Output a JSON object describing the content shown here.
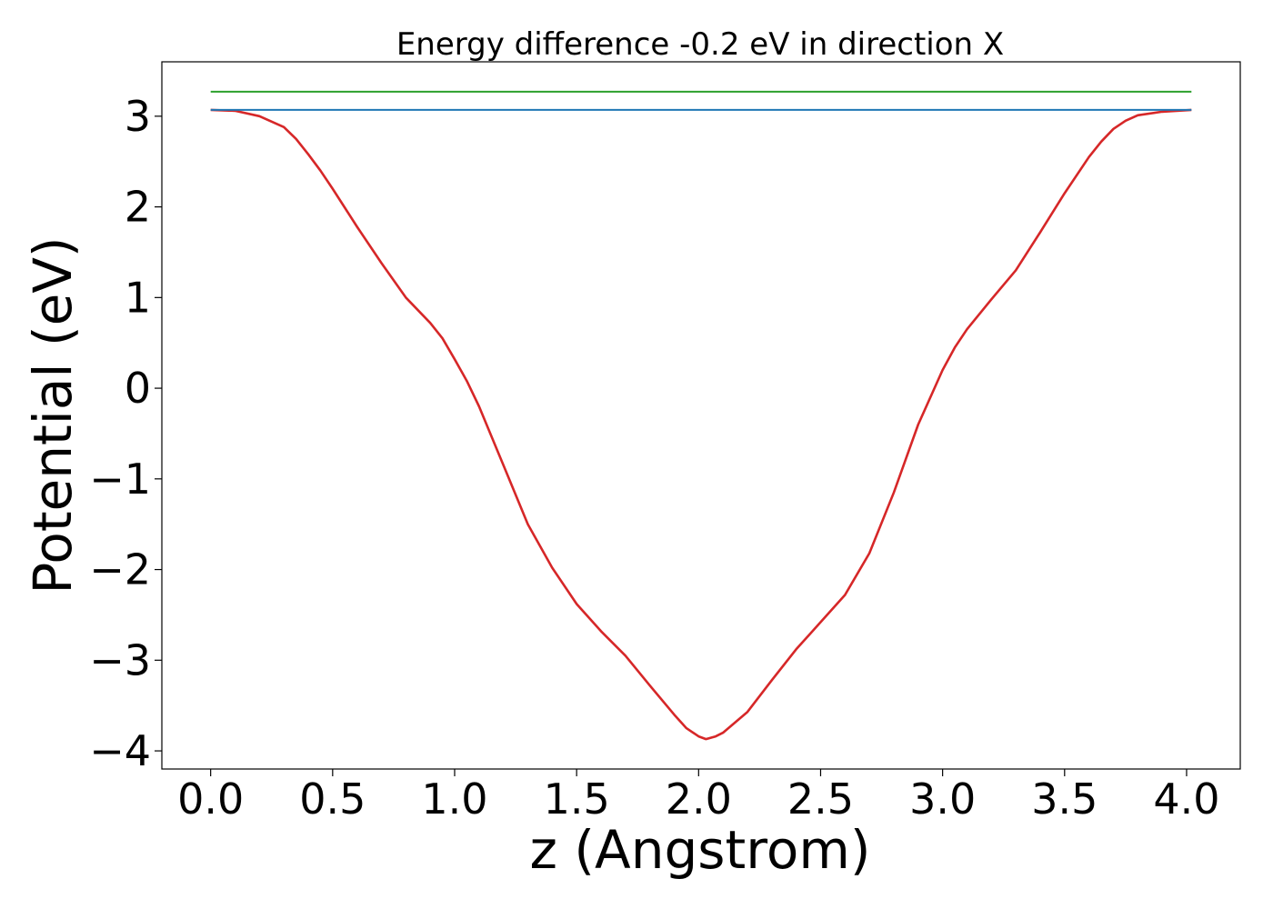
{
  "chart_data": {
    "type": "line",
    "title": "Energy difference -0.2 eV in direction X",
    "xlabel": "z (Angstrom)",
    "ylabel": "Potential (eV)",
    "xlim": [
      -0.2,
      4.22
    ],
    "ylim": [
      -4.2,
      3.6
    ],
    "xticks": [
      0.0,
      0.5,
      1.0,
      1.5,
      2.0,
      2.5,
      3.0,
      3.5,
      4.0
    ],
    "xtick_labels": [
      "0.0",
      "0.5",
      "1.0",
      "1.5",
      "2.0",
      "2.5",
      "3.0",
      "3.5",
      "4.0"
    ],
    "yticks": [
      3,
      2,
      1,
      0,
      -1,
      -2,
      -3,
      -4
    ],
    "ytick_labels": [
      "3",
      "2",
      "1",
      "0",
      "−1",
      "−2",
      "−3",
      "−4"
    ],
    "grid": false,
    "legend": "none",
    "series": [
      {
        "color": "#d62728",
        "x": [
          0.0,
          0.1,
          0.2,
          0.3,
          0.35,
          0.4,
          0.45,
          0.5,
          0.6,
          0.7,
          0.8,
          0.9,
          0.95,
          1.0,
          1.05,
          1.1,
          1.2,
          1.3,
          1.4,
          1.5,
          1.6,
          1.7,
          1.8,
          1.9,
          1.95,
          2.0,
          2.03,
          2.07,
          2.1,
          2.2,
          2.3,
          2.4,
          2.5,
          2.6,
          2.7,
          2.8,
          2.9,
          3.0,
          3.05,
          3.1,
          3.2,
          3.3,
          3.4,
          3.5,
          3.6,
          3.65,
          3.7,
          3.75,
          3.8,
          3.9,
          4.02
        ],
        "y": [
          3.07,
          3.06,
          3.0,
          2.88,
          2.75,
          2.58,
          2.4,
          2.2,
          1.78,
          1.38,
          1.0,
          0.72,
          0.55,
          0.32,
          0.08,
          -0.2,
          -0.85,
          -1.5,
          -1.98,
          -2.38,
          -2.68,
          -2.95,
          -3.28,
          -3.6,
          -3.75,
          -3.84,
          -3.87,
          -3.84,
          -3.8,
          -3.57,
          -3.22,
          -2.88,
          -2.58,
          -2.28,
          -1.82,
          -1.15,
          -0.4,
          0.2,
          0.45,
          0.65,
          0.98,
          1.3,
          1.72,
          2.15,
          2.55,
          2.72,
          2.86,
          2.95,
          3.01,
          3.05,
          3.07
        ]
      },
      {
        "color": "#2ca02c",
        "x": [
          0.0,
          4.02
        ],
        "y": [
          3.27,
          3.27
        ]
      },
      {
        "color": "#1f77b4",
        "x": [
          0.0,
          4.02
        ],
        "y": [
          3.07,
          3.07
        ]
      }
    ]
  }
}
